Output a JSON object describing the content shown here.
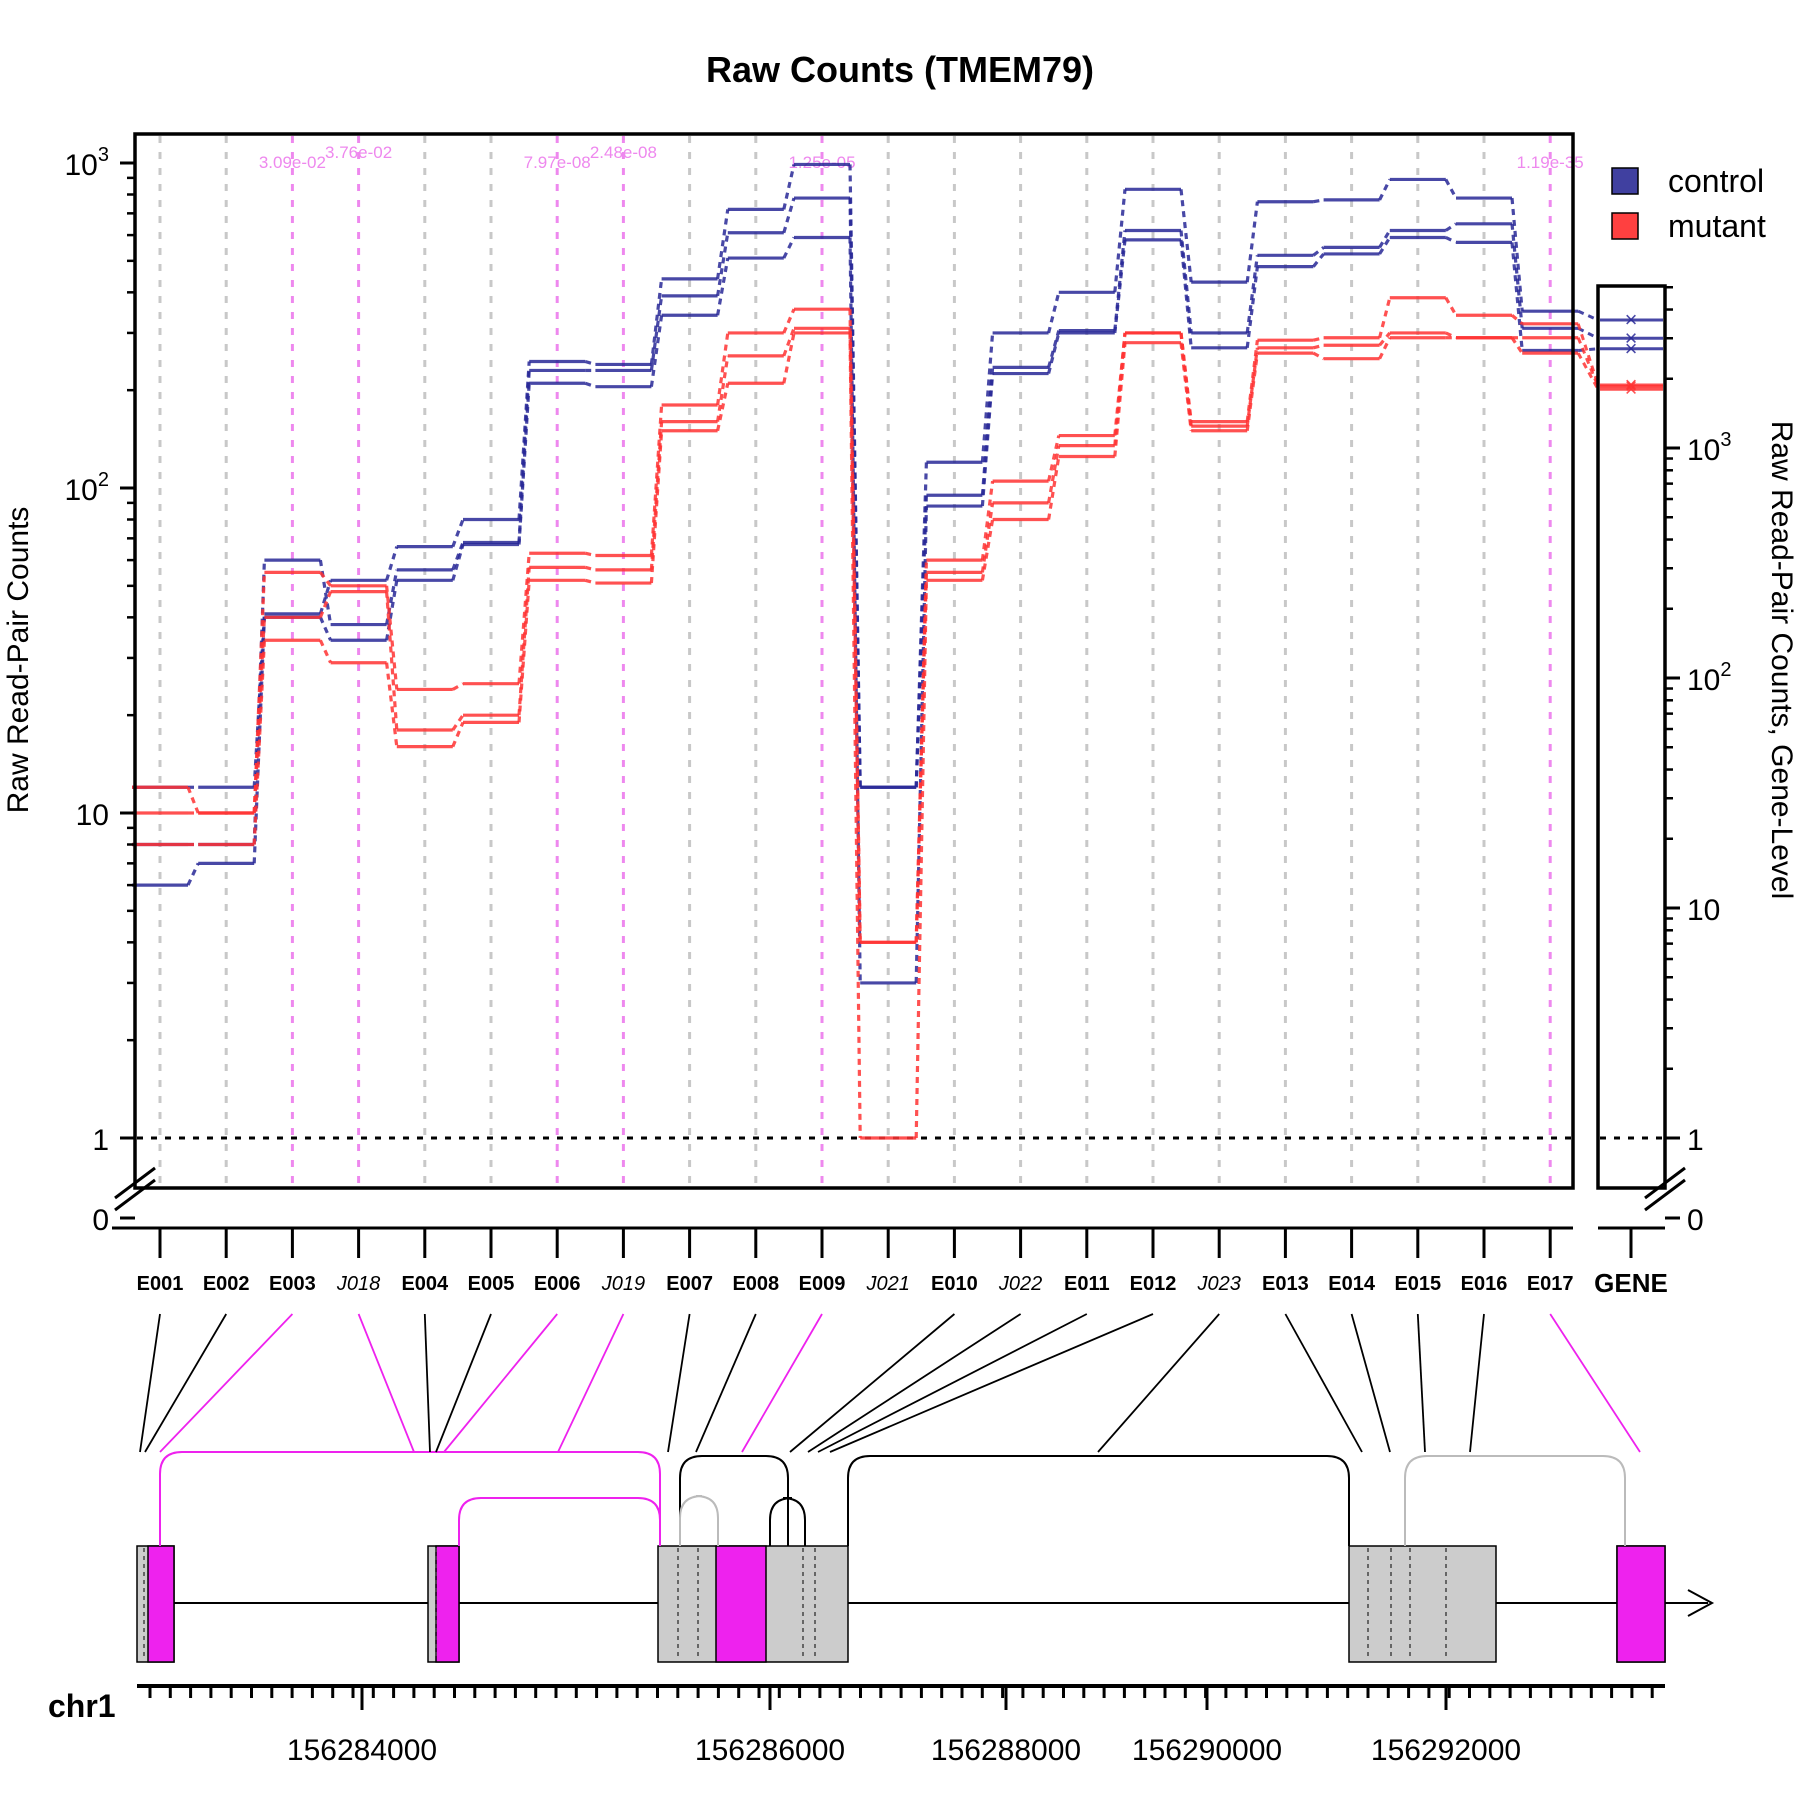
{
  "chart_data": {
    "type": "line",
    "title": "Raw Counts (TMEM79)",
    "ylabel": "Raw Read-Pair Counts",
    "ylabel_right": "Raw Read-Pair Counts, Gene-Level",
    "yscale": "log",
    "ylim": [
      0,
      1300
    ],
    "yticks_left": [
      "0",
      "1",
      "10",
      "10^2",
      "10^3"
    ],
    "yticks_right": [
      "0",
      "1",
      "10",
      "10^2",
      "10^3"
    ],
    "legend": {
      "position": "top-right",
      "items": [
        {
          "name": "control",
          "color": "#4040a0"
        },
        {
          "name": "mutant",
          "color": "#ff4040"
        }
      ]
    },
    "categories": [
      "E001",
      "E002",
      "E003",
      "J018",
      "E004",
      "E005",
      "E006",
      "J019",
      "E007",
      "E008",
      "E009",
      "J021",
      "E010",
      "J022",
      "E011",
      "E012",
      "J023",
      "E013",
      "E014",
      "E015",
      "E016",
      "E017"
    ],
    "junction_categories": [
      "J018",
      "J019",
      "J021",
      "J022",
      "J023"
    ],
    "gene_category": "GENE",
    "significant_features": [
      {
        "category": "E003",
        "pvalue": "3.09e-02"
      },
      {
        "category": "J018",
        "pvalue": "3.76e-02"
      },
      {
        "category": "E006",
        "pvalue": "7.97e-08"
      },
      {
        "category": "J019",
        "pvalue": "2.48e-08"
      },
      {
        "category": "E009",
        "pvalue": "1.25e-05"
      },
      {
        "category": "E017",
        "pvalue": "1.19e-35"
      }
    ],
    "reference_line": 1,
    "series": [
      {
        "name": "control",
        "group": "control",
        "values": [
          6,
          7,
          40,
          34,
          52,
          67,
          210,
          205,
          340,
          510,
          590,
          3,
          88,
          225,
          300,
          580,
          270,
          480,
          525,
          590,
          570,
          265
        ]
      },
      {
        "name": "control",
        "group": "control",
        "values": [
          8,
          8,
          60,
          38,
          56,
          68,
          230,
          230,
          390,
          610,
          780,
          12,
          95,
          235,
          305,
          620,
          300,
          520,
          550,
          620,
          650,
          310
        ]
      },
      {
        "name": "control",
        "group": "control",
        "values": [
          12,
          12,
          41,
          52,
          66,
          80,
          245,
          240,
          440,
          720,
          990,
          12,
          120,
          300,
          400,
          830,
          430,
          760,
          770,
          890,
          780,
          350
        ]
      },
      {
        "name": "mutant",
        "group": "mutant",
        "values": [
          8,
          8,
          34,
          29,
          16,
          19,
          52,
          51,
          150,
          210,
          300,
          1,
          52,
          80,
          125,
          280,
          150,
          260,
          250,
          290,
          290,
          260
        ]
      },
      {
        "name": "mutant",
        "group": "mutant",
        "values": [
          10,
          10,
          40,
          48,
          18,
          20,
          57,
          56,
          160,
          255,
          310,
          4,
          55,
          90,
          135,
          300,
          155,
          270,
          275,
          300,
          290,
          290
        ]
      },
      {
        "name": "mutant",
        "group": "mutant",
        "values": [
          12,
          10,
          55,
          50,
          24,
          25,
          63,
          62,
          180,
          300,
          355,
          4,
          60,
          105,
          145,
          300,
          160,
          285,
          290,
          385,
          340,
          320
        ]
      }
    ],
    "gene_level": {
      "control": [
        2700,
        3000,
        3600
      ],
      "mutant": [
        1800,
        1850,
        1880
      ],
      "range_max": 5500
    }
  },
  "gene_model": {
    "chromosome": "chr1",
    "axis_ticks": [
      "156284000",
      "156286000",
      "156288000",
      "156290000",
      "156292000"
    ],
    "highlight_color": "#ee22ee",
    "exon_color": "#cccccc"
  }
}
